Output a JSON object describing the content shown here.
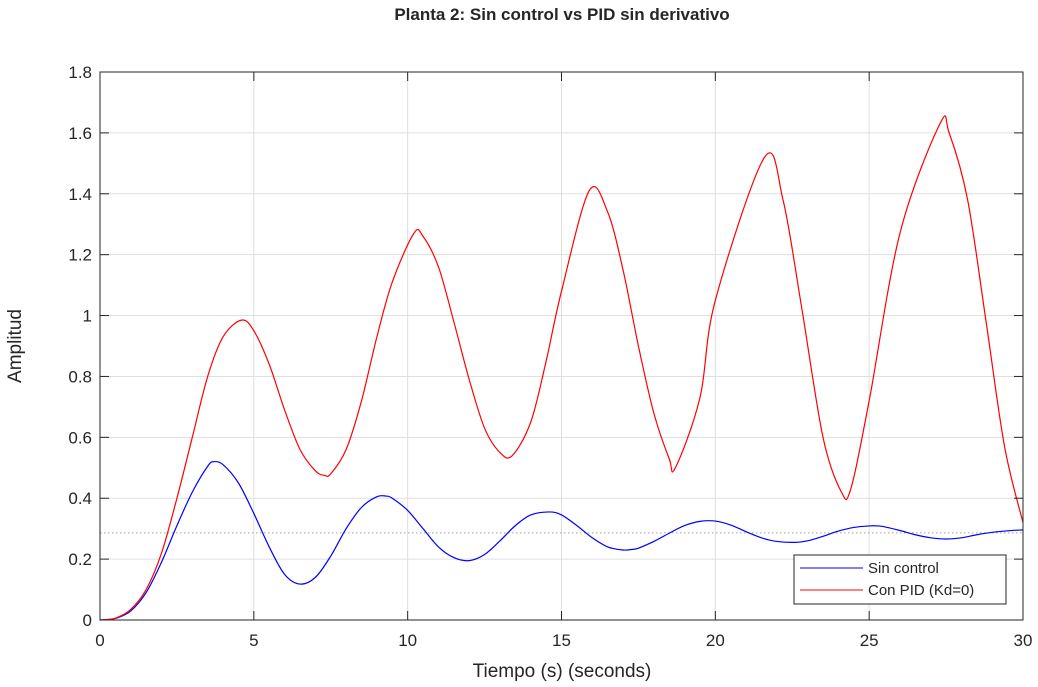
{
  "chart_data": {
    "type": "line",
    "title": "Planta 2: Sin control vs PID sin derivativo",
    "xlabel": "Tiempo (s) (seconds)",
    "ylabel": "Amplitud",
    "xlim": [
      0,
      30
    ],
    "ylim": [
      0,
      1.8
    ],
    "xticks": [
      0,
      5,
      10,
      15,
      20,
      25,
      30
    ],
    "xtick_labels": [
      "0",
      "5",
      "10",
      "15",
      "20",
      "25",
      "30"
    ],
    "yticks": [
      0,
      0.2,
      0.4,
      0.6,
      0.8,
      1,
      1.2,
      1.4,
      1.6,
      1.8
    ],
    "ytick_labels": [
      "0",
      "0.2",
      "0.4",
      "0.6",
      "0.8",
      "1",
      "1.2",
      "1.4",
      "1.6",
      "1.8"
    ],
    "grid": true,
    "legend_position": "bottom-right",
    "steady_state_reference": 0.286,
    "series": [
      {
        "name": "Sin control",
        "color": "#0000ff",
        "x": [
          0,
          0.5,
          1,
          1.5,
          2,
          2.5,
          3,
          3.5,
          3.7,
          4,
          4.5,
          5,
          5.5,
          6,
          6.5,
          7,
          7.5,
          8,
          8.5,
          9,
          9.3,
          9.5,
          10,
          10.5,
          11,
          11.5,
          12,
          12.5,
          13,
          13.5,
          14,
          14.6,
          15,
          15.5,
          16,
          16.5,
          17,
          17.3,
          17.5,
          18,
          18.5,
          19,
          19.5,
          20,
          20.5,
          21,
          21.5,
          22,
          22.6,
          23,
          23.5,
          24,
          24.5,
          25,
          25.3,
          25.5,
          26,
          26.5,
          27,
          27.5,
          28,
          28.5,
          29,
          29.5,
          30
        ],
        "values": [
          0,
          0.005,
          0.03,
          0.09,
          0.19,
          0.31,
          0.42,
          0.505,
          0.52,
          0.51,
          0.45,
          0.35,
          0.24,
          0.15,
          0.118,
          0.14,
          0.21,
          0.3,
          0.37,
          0.405,
          0.407,
          0.4,
          0.36,
          0.3,
          0.24,
          0.205,
          0.195,
          0.215,
          0.26,
          0.31,
          0.345,
          0.355,
          0.345,
          0.31,
          0.27,
          0.24,
          0.23,
          0.232,
          0.236,
          0.258,
          0.285,
          0.31,
          0.324,
          0.325,
          0.312,
          0.29,
          0.27,
          0.258,
          0.255,
          0.26,
          0.275,
          0.292,
          0.304,
          0.309,
          0.309,
          0.306,
          0.294,
          0.28,
          0.27,
          0.266,
          0.27,
          0.28,
          0.288,
          0.293,
          0.296
        ]
      },
      {
        "name": "Con PID (Kd=0)",
        "color": "#ff0000",
        "x": [
          0,
          0.5,
          1,
          1.5,
          2,
          2.5,
          3,
          3.5,
          4,
          4.6,
          5,
          5.5,
          6,
          6.5,
          7,
          7.3,
          7.5,
          8,
          8.5,
          9,
          9.5,
          10.2,
          10.5,
          11,
          11.5,
          12,
          12.5,
          13,
          13.4,
          14,
          14.5,
          15,
          15.9,
          16.5,
          17,
          17.5,
          18,
          18.5,
          18.7,
          19.5,
          20,
          21.6,
          22.2,
          22.8,
          23.5,
          24.1,
          24.4,
          25,
          26,
          27.3,
          27.6,
          28.2,
          28.8,
          29.4,
          30
        ],
        "values": [
          0,
          0.006,
          0.035,
          0.1,
          0.22,
          0.4,
          0.6,
          0.8,
          0.93,
          0.985,
          0.95,
          0.84,
          0.69,
          0.56,
          0.49,
          0.475,
          0.48,
          0.56,
          0.72,
          0.93,
          1.11,
          1.27,
          1.26,
          1.16,
          0.98,
          0.79,
          0.63,
          0.55,
          0.54,
          0.65,
          0.85,
          1.08,
          1.41,
          1.34,
          1.15,
          0.9,
          0.68,
          0.53,
          0.5,
          0.73,
          1.05,
          1.52,
          1.38,
          1.03,
          0.6,
          0.42,
          0.43,
          0.72,
          1.27,
          1.63,
          1.6,
          1.38,
          0.98,
          0.57,
          0.32
        ]
      }
    ]
  }
}
